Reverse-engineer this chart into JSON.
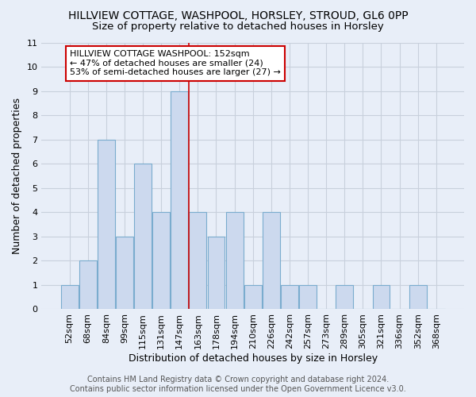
{
  "title1": "HILLVIEW COTTAGE, WASHPOOL, HORSLEY, STROUD, GL6 0PP",
  "title2": "Size of property relative to detached houses in Horsley",
  "xlabel": "Distribution of detached houses by size in Horsley",
  "ylabel": "Number of detached properties",
  "bin_labels": [
    "52sqm",
    "68sqm",
    "84sqm",
    "99sqm",
    "115sqm",
    "131sqm",
    "147sqm",
    "163sqm",
    "178sqm",
    "194sqm",
    "210sqm",
    "226sqm",
    "242sqm",
    "257sqm",
    "273sqm",
    "289sqm",
    "305sqm",
    "321sqm",
    "336sqm",
    "352sqm",
    "368sqm"
  ],
  "bar_values": [
    1,
    2,
    7,
    3,
    6,
    4,
    9,
    4,
    3,
    4,
    1,
    4,
    1,
    1,
    0,
    1,
    0,
    1,
    0,
    1,
    0
  ],
  "bar_color": "#ccd9ee",
  "bar_edgecolor": "#7aacce",
  "vline_index": 7,
  "vline_color": "#cc0000",
  "annotation_text": "HILLVIEW COTTAGE WASHPOOL: 152sqm\n← 47% of detached houses are smaller (24)\n53% of semi-detached houses are larger (27) →",
  "annotation_box_edgecolor": "#cc0000",
  "annotation_box_facecolor": "#ffffff",
  "ylim": [
    0,
    11
  ],
  "yticks": [
    0,
    1,
    2,
    3,
    4,
    5,
    6,
    7,
    8,
    9,
    10,
    11
  ],
  "footer_text": "Contains HM Land Registry data © Crown copyright and database right 2024.\nContains public sector information licensed under the Open Government Licence v3.0.",
  "background_color": "#e8eef8",
  "plot_background_color": "#e8eef8",
  "title1_fontsize": 10,
  "title2_fontsize": 9.5,
  "axis_label_fontsize": 9,
  "tick_fontsize": 8,
  "footer_fontsize": 7,
  "annotation_fontsize": 8,
  "grid_color": "#c8d0dc"
}
